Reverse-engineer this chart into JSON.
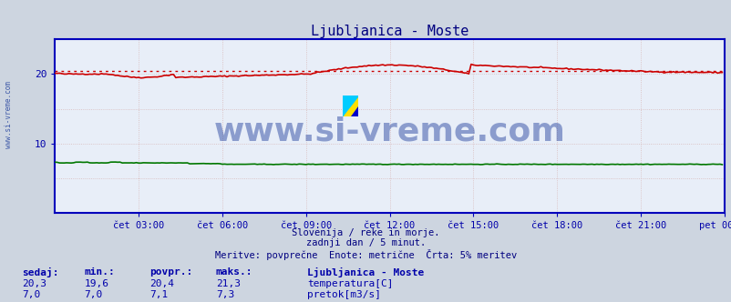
{
  "title": "Ljubljanica - Moste",
  "background_color": "#cdd5e0",
  "plot_bg_color": "#e8eef8",
  "grid_color": "#d8b8b8",
  "title_color": "#000080",
  "tick_label_color": "#0000aa",
  "watermark_text": "www.si-vreme.com",
  "watermark_color": "#1a3a9a",
  "subtitle1": "Slovenija / reke in morje.",
  "subtitle2": "zadnji dan / 5 minut.",
  "subtitle3": "Meritve: povprečne  Enote: metrične  Črta: 5% meritev",
  "subtitle_color": "#000080",
  "ylim": [
    0,
    25
  ],
  "n_points": 288,
  "avg_line_temp": 20.4,
  "temp_color": "#cc0000",
  "flow_color": "#007700",
  "avg_color": "#cc0000",
  "border_color": "#0000bb",
  "xtick_labels": [
    "čet 03:00",
    "čet 06:00",
    "čet 09:00",
    "čet 12:00",
    "čet 15:00",
    "čet 18:00",
    "čet 21:00",
    "pet 00:00"
  ],
  "legend_title": "Ljubljanica - Moste",
  "legend_items": [
    "temperatura[C]",
    "pretok[m3/s]"
  ],
  "legend_colors": [
    "#cc0000",
    "#007700"
  ],
  "stats_headers": [
    "sedaj:",
    "min.:",
    "povpr.:",
    "maks.:"
  ],
  "stats_temp": [
    "20,3",
    "19,6",
    "20,4",
    "21,3"
  ],
  "stats_flow": [
    "7,0",
    "7,0",
    "7,1",
    "7,3"
  ],
  "stats_color": "#0000aa",
  "watermark_fontsize": 26,
  "title_fontsize": 11
}
